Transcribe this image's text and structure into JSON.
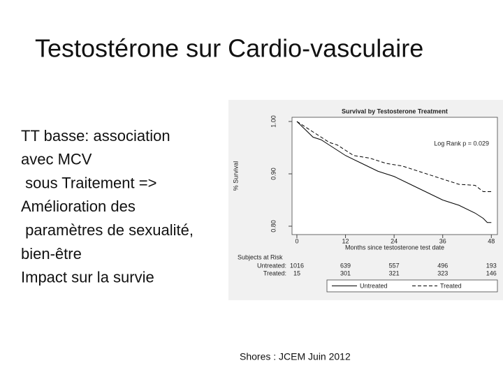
{
  "slide": {
    "title": "Testostérone sur Cardio-vasculaire",
    "body": [
      "TT basse: association",
      "avec MCV",
      " sous Traitement =>",
      "Amélioration des",
      " paramètres de sexualité,",
      "bien-être",
      "Impact sur la survie"
    ],
    "footer": "Shores : JCEM Juin 2012"
  },
  "chart_data": {
    "type": "line",
    "title": "Survival by Testosterone Treatment",
    "x_label": "Months since testosterone test date",
    "y_label": "% Survival",
    "annotation": "Log Rank p = 0.029",
    "xlim": [
      -1.2,
      49.5
    ],
    "xticks": [
      0,
      12,
      24,
      36,
      48
    ],
    "ylim": [
      0.784,
      1.008
    ],
    "yticks": [
      {
        "value": 1,
        "label": "1.00"
      },
      {
        "value": 0.9,
        "label": "0.90"
      },
      {
        "value": 0.8,
        "label": "0.80"
      }
    ],
    "series": [
      {
        "name": "Untreated",
        "color": "#000000",
        "style": "solid",
        "x": [
          0,
          2,
          4,
          6,
          8,
          10,
          12,
          16,
          20,
          24,
          28,
          32,
          36,
          40,
          44,
          46,
          47,
          48
        ],
        "values": [
          1.0,
          0.985,
          0.97,
          0.965,
          0.955,
          0.945,
          0.935,
          0.92,
          0.905,
          0.895,
          0.88,
          0.865,
          0.85,
          0.84,
          0.825,
          0.815,
          0.807,
          0.807
        ]
      },
      {
        "name": "Treated",
        "color": "#000000",
        "style": "dashed",
        "x": [
          0,
          2,
          4,
          6,
          8,
          10,
          12,
          14,
          18,
          22,
          26,
          30,
          34,
          36,
          40,
          44,
          46,
          48
        ],
        "values": [
          1.0,
          0.99,
          0.98,
          0.97,
          0.96,
          0.955,
          0.945,
          0.935,
          0.93,
          0.92,
          0.915,
          0.905,
          0.895,
          0.89,
          0.88,
          0.878,
          0.866,
          0.866
        ]
      }
    ],
    "risk_table": {
      "title": "Subjects at Risk",
      "rows": [
        {
          "name": "Untreated:",
          "values": [
            1016,
            639,
            557,
            496,
            193
          ]
        },
        {
          "name": "Treated:",
          "values": [
            15,
            301,
            321,
            323,
            146
          ]
        }
      ]
    }
  }
}
